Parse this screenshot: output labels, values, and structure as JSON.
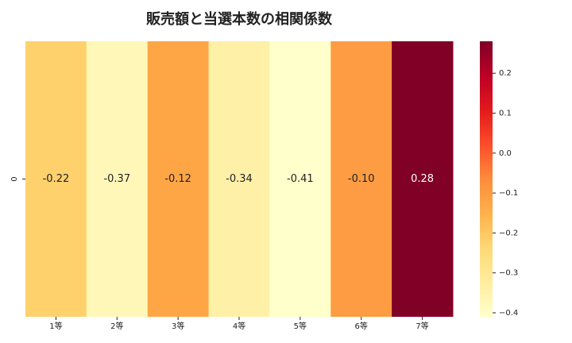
{
  "chart_data": {
    "type": "heatmap",
    "title": "販売額と当選本数の相関係数",
    "categories": [
      "1等",
      "2等",
      "3等",
      "4等",
      "5等",
      "6等",
      "7等"
    ],
    "rows": [
      "0"
    ],
    "values": [
      [
        -0.22,
        -0.37,
        -0.12,
        -0.34,
        -0.41,
        -0.1,
        0.28
      ]
    ],
    "value_labels": [
      [
        "-0.22",
        "-0.37",
        "-0.12",
        "-0.34",
        "-0.41",
        "-0.10",
        "0.28"
      ]
    ],
    "colorscale": [
      "#ffffcc",
      "#ffeda0",
      "#fed976",
      "#feb24c",
      "#fd8d3c",
      "#fc4e2a",
      "#e31a1c",
      "#bd0026",
      "#800026"
    ],
    "zlim": [
      -0.41,
      0.28
    ],
    "zticks": [
      0.2,
      0.1,
      {
        "value": 0,
        "label": "0.0"
      },
      {
        "value": -0.1,
        "label": "−0.1"
      },
      {
        "value": -0.2,
        "label": "−0.2"
      },
      {
        "value": -0.3,
        "label": "−0.3"
      },
      {
        "value": -0.4,
        "label": "−0.4"
      }
    ]
  }
}
